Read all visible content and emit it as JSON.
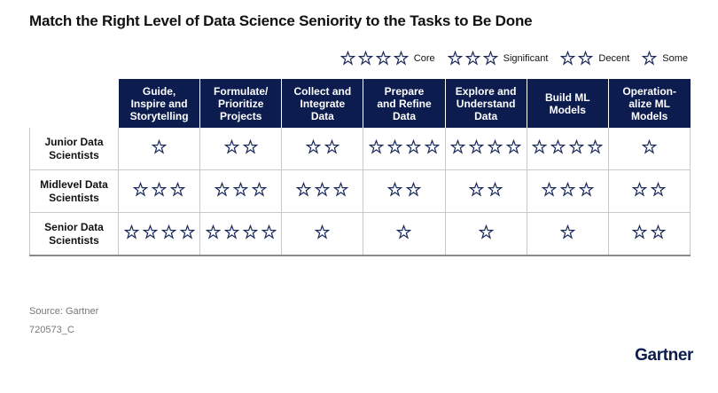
{
  "title": "Match the Right Level of Data Science Seniority to the Tasks to Be Done",
  "legend": [
    {
      "stars": 4,
      "label": "Core"
    },
    {
      "stars": 3,
      "label": "Significant"
    },
    {
      "stars": 2,
      "label": "Decent"
    },
    {
      "stars": 1,
      "label": "Some"
    }
  ],
  "table": {
    "columns": [
      {
        "line1": "Guide,",
        "line2": "Inspire and",
        "line3": "Storytelling"
      },
      {
        "line1": "Formulate/",
        "line2": "Prioritize",
        "line3": "Projects"
      },
      {
        "line1": "Collect and",
        "line2": "Integrate",
        "line3": "Data"
      },
      {
        "line1": "Prepare",
        "line2": "and Refine",
        "line3": "Data"
      },
      {
        "line1": "Explore and",
        "line2": "Understand",
        "line3": "Data"
      },
      {
        "line1": "Build ML",
        "line2": "Models",
        "line3": ""
      },
      {
        "line1": "Operation-",
        "line2": "alize ML",
        "line3": "Models"
      }
    ],
    "rows": [
      {
        "line1": "Junior Data",
        "line2": "Scientists",
        "ratings": [
          1,
          2,
          2,
          4,
          4,
          4,
          1
        ]
      },
      {
        "line1": "Midlevel Data",
        "line2": "Scientists",
        "ratings": [
          3,
          3,
          3,
          2,
          2,
          3,
          2
        ]
      },
      {
        "line1": "Senior Data",
        "line2": "Scientists",
        "ratings": [
          4,
          4,
          1,
          1,
          1,
          1,
          2
        ]
      }
    ]
  },
  "star_color": "#1b2a5c",
  "header_color": "#0c1c4e",
  "footer": {
    "source": "Source: Gartner",
    "doc_id": "720573_C",
    "brand": "Gartner"
  }
}
